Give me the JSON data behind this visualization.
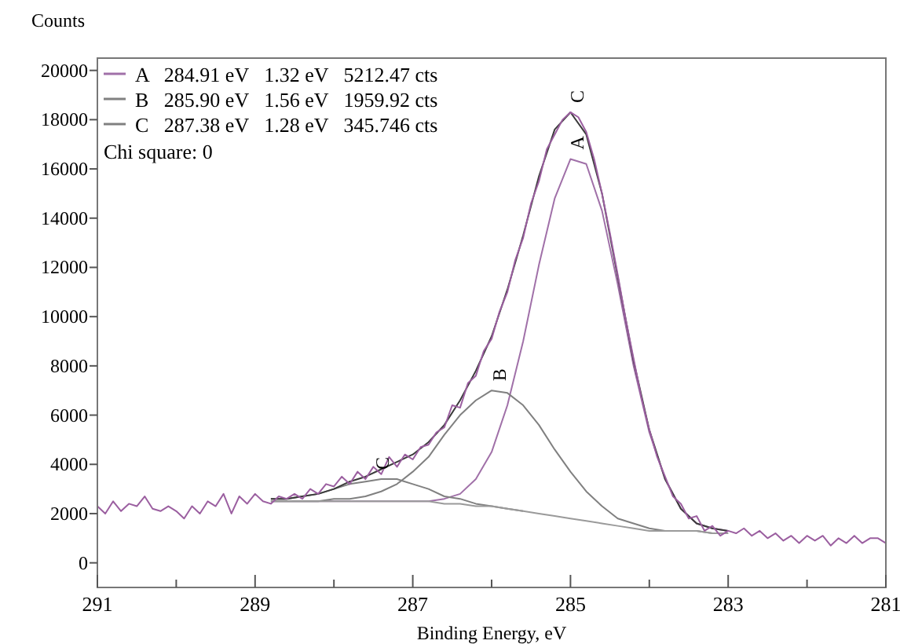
{
  "chart_data": {
    "type": "line",
    "xlabel": "Binding Energy, eV",
    "ylabel": "Counts",
    "xlim": [
      291,
      281
    ],
    "ylim": [
      -1000,
      20500
    ],
    "xticks": [
      291,
      {
        "value": 290,
        "label": null
      },
      289,
      {
        "value": 288,
        "label": null
      },
      287,
      {
        "value": 286,
        "label": null
      },
      285,
      {
        "value": 284,
        "label": null
      },
      283,
      {
        "value": 282,
        "label": null
      },
      281
    ],
    "yticks": [
      0,
      2000,
      4000,
      6000,
      8000,
      10000,
      12000,
      14000,
      16000,
      18000,
      20000
    ],
    "grid": false,
    "legend": "top left",
    "line_style": "solid",
    "annotations": [
      "Chi square: 0",
      {
        "text": "A",
        "x": 284.91,
        "y": 16400
      },
      {
        "text": "B",
        "x": 285.9,
        "y": 7000
      },
      {
        "text": "C",
        "x": 287.38,
        "y": 3400
      },
      {
        "text": "C",
        "x": 284.91,
        "y": 18300
      }
    ],
    "series": [
      {
        "name": "A   284.91 eV   1.32 eV   5212.47 cts",
        "color": "#a070a8",
        "x": [
          288.8,
          288.6,
          288.4,
          288.2,
          288.0,
          287.8,
          287.6,
          287.4,
          287.2,
          287.0,
          286.8,
          286.6,
          286.4,
          286.2,
          286.0,
          285.8,
          285.6,
          285.4,
          285.2,
          285.0,
          284.8,
          284.6,
          284.4,
          284.2,
          284.0,
          283.8,
          283.6,
          283.4,
          283.2,
          283.0
        ],
        "values": [
          2500,
          2500,
          2500,
          2500,
          2500,
          2500,
          2500,
          2500,
          2500,
          2500,
          2500,
          2600,
          2800,
          3400,
          4500,
          6400,
          9000,
          12100,
          14800,
          16400,
          16200,
          14300,
          11300,
          8000,
          5300,
          3400,
          2200,
          1600,
          1400,
          1300
        ]
      },
      {
        "name": "B   285.90 eV   1.56 eV   1959.92 cts",
        "color": "#808080",
        "x": [
          288.8,
          288.6,
          288.4,
          288.2,
          288.0,
          287.8,
          287.6,
          287.4,
          287.2,
          287.0,
          286.8,
          286.6,
          286.4,
          286.2,
          286.0,
          285.8,
          285.6,
          285.4,
          285.2,
          285.0,
          284.8,
          284.6,
          284.4,
          284.2,
          284.0,
          283.8,
          283.6,
          283.4,
          283.2,
          283.0
        ],
        "values": [
          2500,
          2500,
          2500,
          2500,
          2600,
          2600,
          2700,
          2900,
          3200,
          3700,
          4300,
          5200,
          6000,
          6600,
          7000,
          6900,
          6400,
          5600,
          4600,
          3700,
          2900,
          2300,
          1800,
          1600,
          1400,
          1300,
          1300,
          1300,
          1200,
          1200
        ]
      },
      {
        "name": "C   287.38 eV   1.28 eV   345.746 cts",
        "color": "#808080",
        "x": [
          288.8,
          288.6,
          288.4,
          288.2,
          288.0,
          287.8,
          287.6,
          287.4,
          287.2,
          287.0,
          286.8,
          286.6,
          286.4,
          286.2,
          286.0,
          285.8,
          285.6
        ],
        "values": [
          2600,
          2600,
          2700,
          2800,
          3000,
          3200,
          3300,
          3400,
          3400,
          3200,
          3000,
          2700,
          2600,
          2400,
          2300,
          2200,
          2100
        ]
      },
      {
        "color": "#9a9a9a",
        "x": [
          288.8,
          288.6,
          288.4,
          288.2,
          288.0,
          287.8,
          287.6,
          287.4,
          287.2,
          287.0,
          286.8,
          286.6,
          286.4,
          286.2,
          286.0,
          285.8,
          285.6,
          285.4,
          285.2,
          285.0,
          284.8,
          284.6,
          284.4,
          284.2,
          284.0,
          283.8,
          283.6,
          283.4,
          283.2,
          283.0
        ],
        "values": [
          2500,
          2500,
          2500,
          2500,
          2500,
          2500,
          2500,
          2500,
          2500,
          2500,
          2500,
          2400,
          2400,
          2300,
          2300,
          2200,
          2100,
          2000,
          1900,
          1800,
          1700,
          1600,
          1500,
          1400,
          1300,
          1300,
          1300,
          1300,
          1200,
          1200
        ]
      },
      {
        "color": "#3a3a3a",
        "x": [
          288.8,
          288.6,
          288.4,
          288.2,
          288.0,
          287.8,
          287.6,
          287.4,
          287.2,
          287.0,
          286.8,
          286.6,
          286.4,
          286.2,
          286.0,
          285.8,
          285.6,
          285.4,
          285.2,
          285.0,
          284.8,
          284.6,
          284.4,
          284.2,
          284.0,
          283.8,
          283.6,
          283.4,
          283.2,
          283.0
        ],
        "values": [
          2600,
          2600,
          2700,
          2800,
          3000,
          3300,
          3500,
          3800,
          4100,
          4400,
          4900,
          5600,
          6600,
          7800,
          9200,
          11100,
          13300,
          15700,
          17600,
          18300,
          17400,
          15000,
          11600,
          8200,
          5400,
          3400,
          2200,
          1600,
          1400,
          1300
        ]
      },
      {
        "color": "#9b5fa0",
        "x": [
          291.0,
          290.9,
          290.8,
          290.7,
          290.6,
          290.5,
          290.4,
          290.3,
          290.2,
          290.1,
          290.0,
          289.9,
          289.8,
          289.7,
          289.6,
          289.5,
          289.4,
          289.3,
          289.2,
          289.1,
          289.0,
          288.9,
          288.8,
          288.7,
          288.6,
          288.5,
          288.4,
          288.3,
          288.2,
          288.1,
          288.0,
          287.9,
          287.8,
          287.7,
          287.6,
          287.5,
          287.4,
          287.3,
          287.2,
          287.1,
          287.0,
          286.9,
          286.8,
          286.7,
          286.6,
          286.5,
          286.4,
          286.3,
          286.2,
          286.1,
          286.0,
          285.9,
          285.8,
          285.7,
          285.6,
          285.5,
          285.4,
          285.3,
          285.2,
          285.1,
          285.0,
          284.9,
          284.8,
          284.7,
          284.6,
          284.5,
          284.4,
          284.3,
          284.2,
          284.1,
          284.0,
          283.9,
          283.8,
          283.7,
          283.6,
          283.5,
          283.4,
          283.3,
          283.2,
          283.1,
          283.0,
          282.9,
          282.8,
          282.7,
          282.6,
          282.5,
          282.4,
          282.3,
          282.2,
          282.1,
          282.0,
          281.9,
          281.8,
          281.7,
          281.6,
          281.5,
          281.4,
          281.3,
          281.2,
          281.1,
          281.0
        ],
        "values": [
          2300,
          2000,
          2500,
          2100,
          2400,
          2300,
          2700,
          2200,
          2100,
          2300,
          2100,
          1800,
          2300,
          2000,
          2500,
          2300,
          2800,
          2000,
          2700,
          2400,
          2800,
          2500,
          2400,
          2700,
          2600,
          2800,
          2600,
          3000,
          2800,
          3200,
          3100,
          3500,
          3200,
          3700,
          3400,
          3900,
          3600,
          4300,
          3900,
          4400,
          4200,
          4700,
          4800,
          5300,
          5500,
          6400,
          6300,
          7300,
          7600,
          8600,
          9100,
          10200,
          11000,
          12300,
          13200,
          14600,
          15500,
          16800,
          17400,
          18000,
          18300,
          18100,
          17500,
          16400,
          15000,
          13400,
          11700,
          9900,
          8300,
          6700,
          5400,
          4300,
          3500,
          2700,
          2400,
          1800,
          1900,
          1300,
          1500,
          1100,
          1300,
          1200,
          1400,
          1100,
          1300,
          1000,
          1200,
          900,
          1100,
          800,
          1100,
          900,
          1100,
          700,
          1000,
          800,
          1100,
          800,
          1000,
          1000,
          800
        ]
      }
    ]
  }
}
